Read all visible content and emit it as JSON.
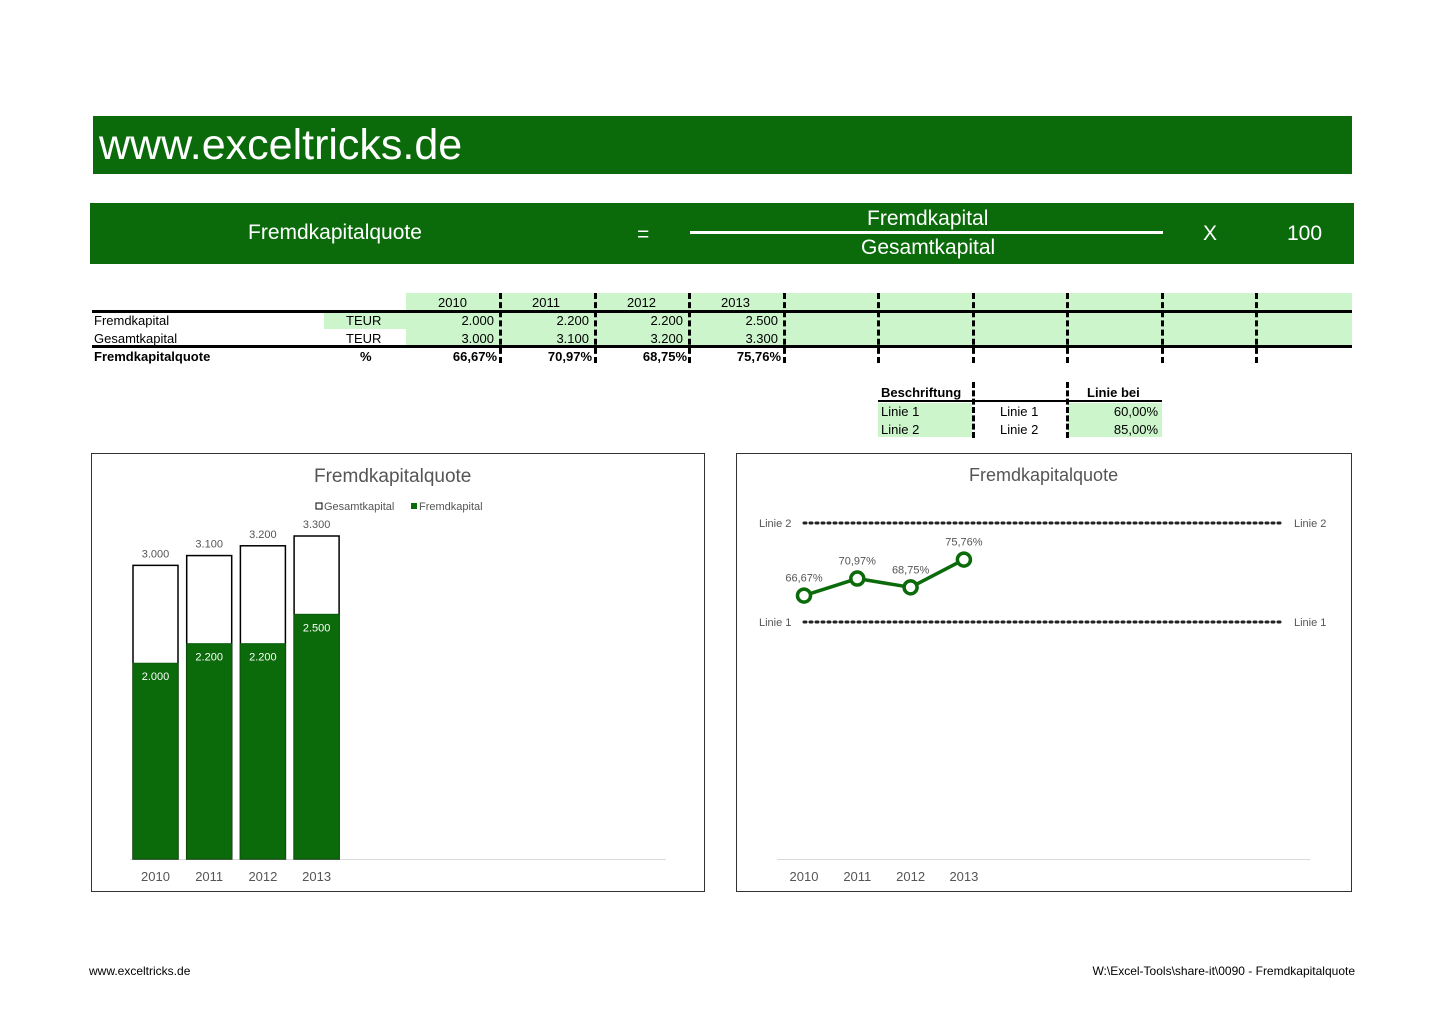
{
  "banner": {
    "site": "www.exceltricks.de"
  },
  "formula": {
    "left": "Fremdkapitalquote",
    "equals": "=",
    "numerator": "Fremdkapital",
    "denominator": "Gesamtkapital",
    "times": "X",
    "factor": "100"
  },
  "table": {
    "years": [
      "2010",
      "2011",
      "2012",
      "2013"
    ],
    "rows": [
      {
        "label": "Fremdkapital",
        "unit": "TEUR",
        "values": [
          "2.000",
          "2.200",
          "2.200",
          "2.500"
        ]
      },
      {
        "label": "Gesamtkapital",
        "unit": "TEUR",
        "values": [
          "3.000",
          "3.100",
          "3.200",
          "3.300"
        ]
      },
      {
        "label": "Fremdkapitalquote",
        "unit": "%",
        "values": [
          "66,67%",
          "70,97%",
          "68,75%",
          "75,76%"
        ]
      }
    ]
  },
  "lines_table": {
    "header_label": "Beschriftung",
    "header_value": "Linie bei",
    "rows": [
      {
        "label": "Linie 1",
        "name": "Linie 1",
        "value": "60,00%"
      },
      {
        "label": "Linie 2",
        "name": "Linie 2",
        "value": "85,00%"
      }
    ]
  },
  "chart_data": [
    {
      "type": "bar",
      "title": "Fremdkapitalquote",
      "categories": [
        "2010",
        "2011",
        "2012",
        "2013"
      ],
      "series": [
        {
          "name": "Gesamtkapital",
          "values": [
            3000,
            3100,
            3200,
            3300
          ],
          "color": "#ffffff"
        },
        {
          "name": "Fremdkapital",
          "values": [
            2000,
            2200,
            2200,
            2500
          ],
          "color": "#0b6b0b"
        }
      ],
      "value_labels_total": [
        "3.000",
        "3.100",
        "3.200",
        "3.300"
      ],
      "value_labels_part": [
        "2.000",
        "2.200",
        "2.200",
        "2.500"
      ],
      "ylim": [
        0,
        3300
      ],
      "legend": "top"
    },
    {
      "type": "line",
      "title": "Fremdkapitalquote",
      "categories": [
        "2010",
        "2011",
        "2012",
        "2013"
      ],
      "values": [
        66.67,
        70.97,
        68.75,
        75.76
      ],
      "value_labels": [
        "66,67%",
        "70,97%",
        "68,75%",
        "75,76%"
      ],
      "reference_lines": [
        {
          "name": "Linie 2",
          "value": 85
        },
        {
          "name": "Linie 1",
          "value": 60
        }
      ],
      "color": "#0b6b0b"
    }
  ],
  "footer": {
    "left": "www.exceltricks.de",
    "right": "W:\\Excel-Tools\\share-it\\0090 - Fremdkapitalquote"
  }
}
